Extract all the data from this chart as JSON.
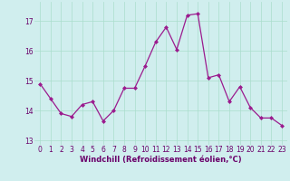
{
  "x": [
    0,
    1,
    2,
    3,
    4,
    5,
    6,
    7,
    8,
    9,
    10,
    11,
    12,
    13,
    14,
    15,
    16,
    17,
    18,
    19,
    20,
    21,
    22,
    23
  ],
  "y": [
    14.9,
    14.4,
    13.9,
    13.8,
    14.2,
    14.3,
    13.65,
    14.0,
    14.75,
    14.75,
    15.5,
    16.3,
    16.8,
    16.05,
    17.2,
    17.25,
    15.1,
    15.2,
    14.3,
    14.8,
    14.1,
    13.75,
    13.75,
    13.5
  ],
  "line_color": "#9b1b8e",
  "marker": "D",
  "marker_size": 2.0,
  "linewidth": 0.9,
  "xlabel": "Windchill (Refroidissement éolien,°C)",
  "xlabel_fontsize": 6.0,
  "xlabel_color": "#6a006a",
  "xticks": [
    0,
    1,
    2,
    3,
    4,
    5,
    6,
    7,
    8,
    9,
    10,
    11,
    12,
    13,
    14,
    15,
    16,
    17,
    18,
    19,
    20,
    21,
    22,
    23
  ],
  "yticks": [
    13,
    14,
    15,
    16,
    17
  ],
  "ylim": [
    12.85,
    17.65
  ],
  "xlim": [
    -0.5,
    23.5
  ],
  "tick_fontsize": 5.5,
  "tick_color": "#6a006a",
  "grid_color": "#aaddcc",
  "bg_color": "#d0eeee",
  "fig_bg": "#d0eeee"
}
